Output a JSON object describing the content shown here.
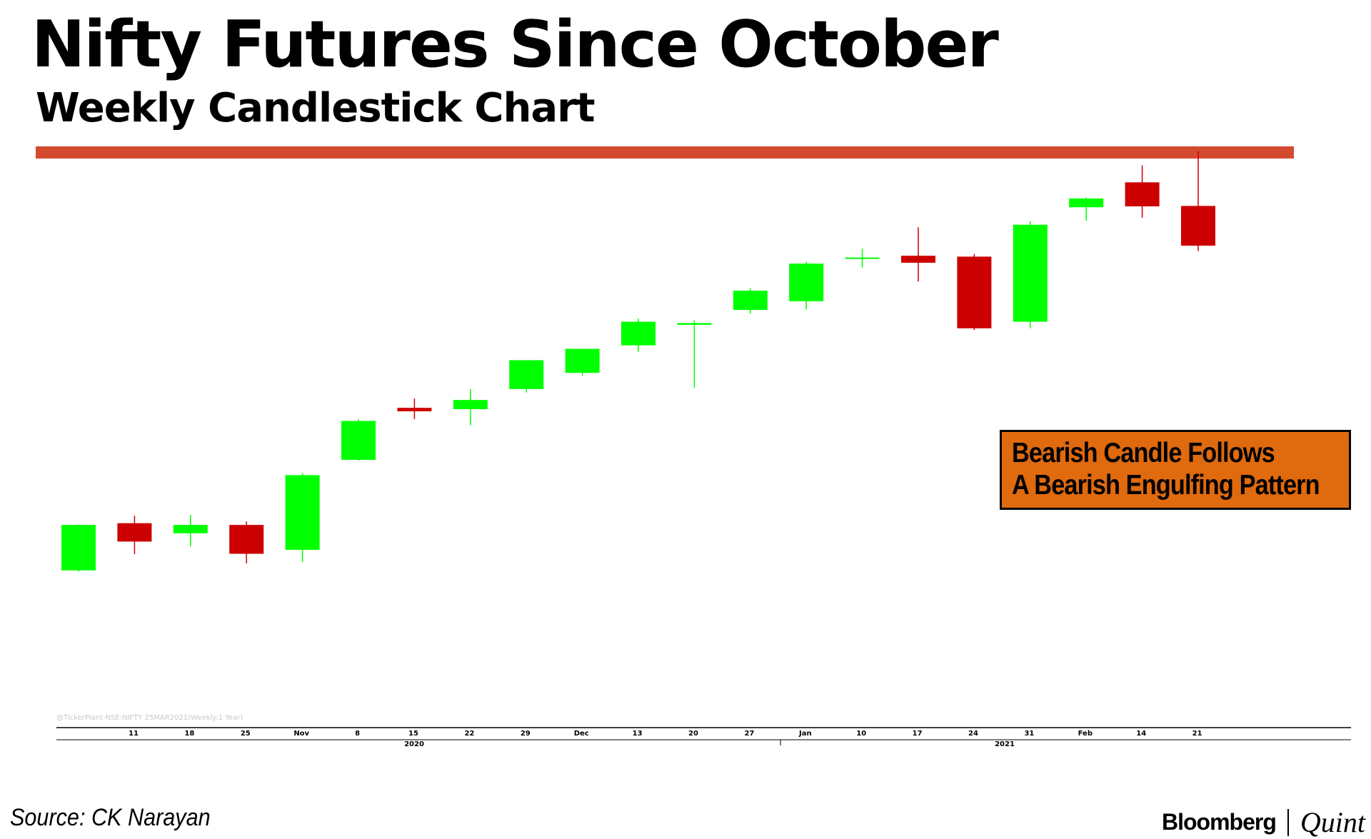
{
  "header": {
    "title": "Nifty Futures Since October",
    "subtitle": "Weekly Candlestick Chart",
    "rule_color": "#D44A2E"
  },
  "annotation": {
    "line1": "Bearish Candle Follows",
    "line2": "A Bearish Engulfing Pattern",
    "background": "#E06A0E"
  },
  "footer": {
    "source": "Source: CK Narayan",
    "logo_left": "Bloomberg",
    "logo_right": "Quint"
  },
  "chart_data": {
    "type": "candlestick",
    "watermark": "@TickerPlant-NSE:NIFTY 25MAR2021(Weekly:1 Year)",
    "x_tick_labels": [
      "11",
      "18",
      "25",
      "Nov",
      "8",
      "15",
      "22",
      "29",
      "Dec",
      "13",
      "20",
      "27",
      "Jan",
      "10",
      "17",
      "24",
      "31",
      "Feb",
      "14",
      "21"
    ],
    "year_labels": [
      "2020",
      "2021"
    ],
    "colors": {
      "up": "#00FF00",
      "down": "#CC0000"
    },
    "y_range": [
      0,
      100
    ],
    "candles": [
      {
        "open": 14.9,
        "high": 25.4,
        "low": 14.6,
        "close": 25.3
      },
      {
        "open": 25.7,
        "high": 27.4,
        "low": 18.6,
        "close": 21.5
      },
      {
        "open": 23.4,
        "high": 27.6,
        "low": 20.4,
        "close": 25.3
      },
      {
        "open": 25.3,
        "high": 26.1,
        "low": 16.5,
        "close": 18.7
      },
      {
        "open": 19.6,
        "high": 37.2,
        "low": 16.8,
        "close": 36.7
      },
      {
        "open": 40.2,
        "high": 49.5,
        "low": 40.0,
        "close": 49.1
      },
      {
        "open": 52.1,
        "high": 54.2,
        "low": 49.5,
        "close": 51.3
      },
      {
        "open": 51.8,
        "high": 56.4,
        "low": 48.1,
        "close": 53.9
      },
      {
        "open": 56.4,
        "high": 63.0,
        "low": 55.6,
        "close": 63.0
      },
      {
        "open": 60.1,
        "high": 65.6,
        "low": 59.4,
        "close": 65.6
      },
      {
        "open": 66.4,
        "high": 72.5,
        "low": 64.9,
        "close": 71.8
      },
      {
        "open": 71.1,
        "high": 72.1,
        "low": 56.7,
        "close": 71.5
      },
      {
        "open": 74.5,
        "high": 79.5,
        "low": 73.7,
        "close": 78.9
      },
      {
        "open": 76.5,
        "high": 85.5,
        "low": 74.6,
        "close": 85.1
      },
      {
        "open": 86.3,
        "high": 88.5,
        "low": 84.2,
        "close": 86.5
      },
      {
        "open": 86.9,
        "high": 93.4,
        "low": 81.0,
        "close": 85.3
      },
      {
        "open": 86.7,
        "high": 87.3,
        "low": 69.9,
        "close": 70.3
      },
      {
        "open": 71.8,
        "high": 94.8,
        "low": 70.3,
        "close": 94.0
      },
      {
        "open": 98.0,
        "high": 100.2,
        "low": 94.9,
        "close": 100.0
      },
      {
        "open": 103.7,
        "high": 107.6,
        "low": 95.6,
        "close": 98.2
      },
      {
        "open": 98.3,
        "high": 110.8,
        "low": 88.0,
        "close": 89.2
      }
    ]
  }
}
